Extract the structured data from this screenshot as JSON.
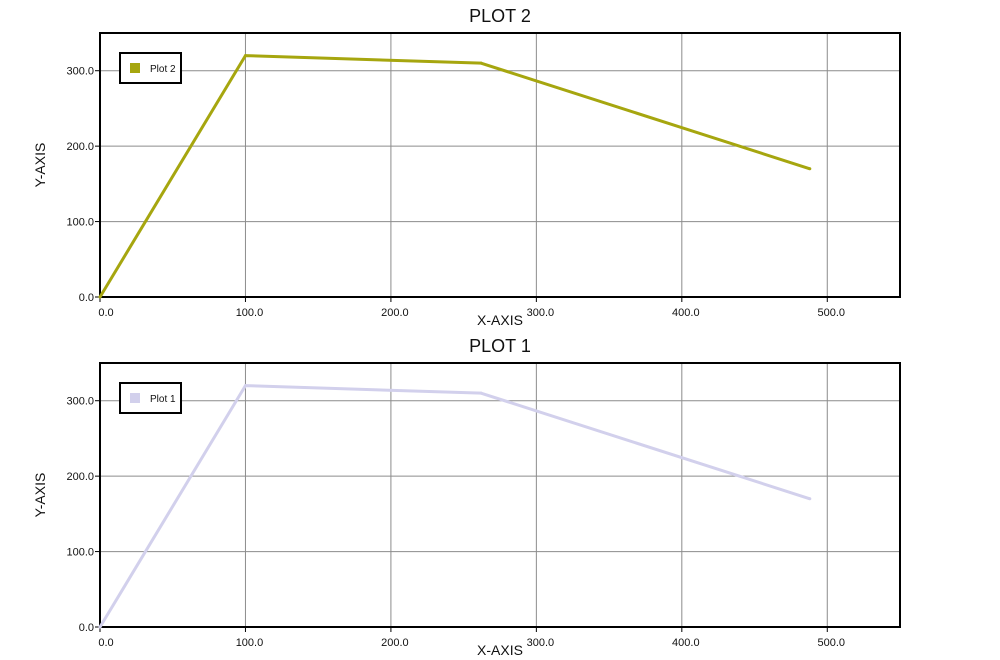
{
  "chart_data": [
    {
      "type": "line",
      "title": "PLOT 2",
      "xlabel": "X-AXIS",
      "ylabel": "Y-AXIS",
      "xlim": [
        0,
        550
      ],
      "ylim": [
        0,
        350
      ],
      "xticks": [
        "0.0",
        "100.0",
        "200.0",
        "300.0",
        "400.0",
        "500.0"
      ],
      "yticks": [
        "0.0",
        "100.0",
        "200.0",
        "300.0"
      ],
      "grid": true,
      "legend_position": "top-left",
      "series": [
        {
          "name": "Plot 2",
          "color": "#a6a60f",
          "x": [
            0,
            100,
            262,
            488
          ],
          "y": [
            0,
            320,
            310,
            170
          ]
        }
      ]
    },
    {
      "type": "line",
      "title": "PLOT 1",
      "xlabel": "X-AXIS",
      "ylabel": "Y-AXIS",
      "xlim": [
        0,
        550
      ],
      "ylim": [
        0,
        350
      ],
      "xticks": [
        "0.0",
        "100.0",
        "200.0",
        "300.0",
        "400.0",
        "500.0"
      ],
      "yticks": [
        "0.0",
        "100.0",
        "200.0",
        "300.0"
      ],
      "grid": true,
      "legend_position": "top-left",
      "series": [
        {
          "name": "Plot 1",
          "color": "#d2d0ec",
          "x": [
            0,
            100,
            262,
            488
          ],
          "y": [
            0,
            320,
            310,
            170
          ]
        }
      ]
    }
  ]
}
